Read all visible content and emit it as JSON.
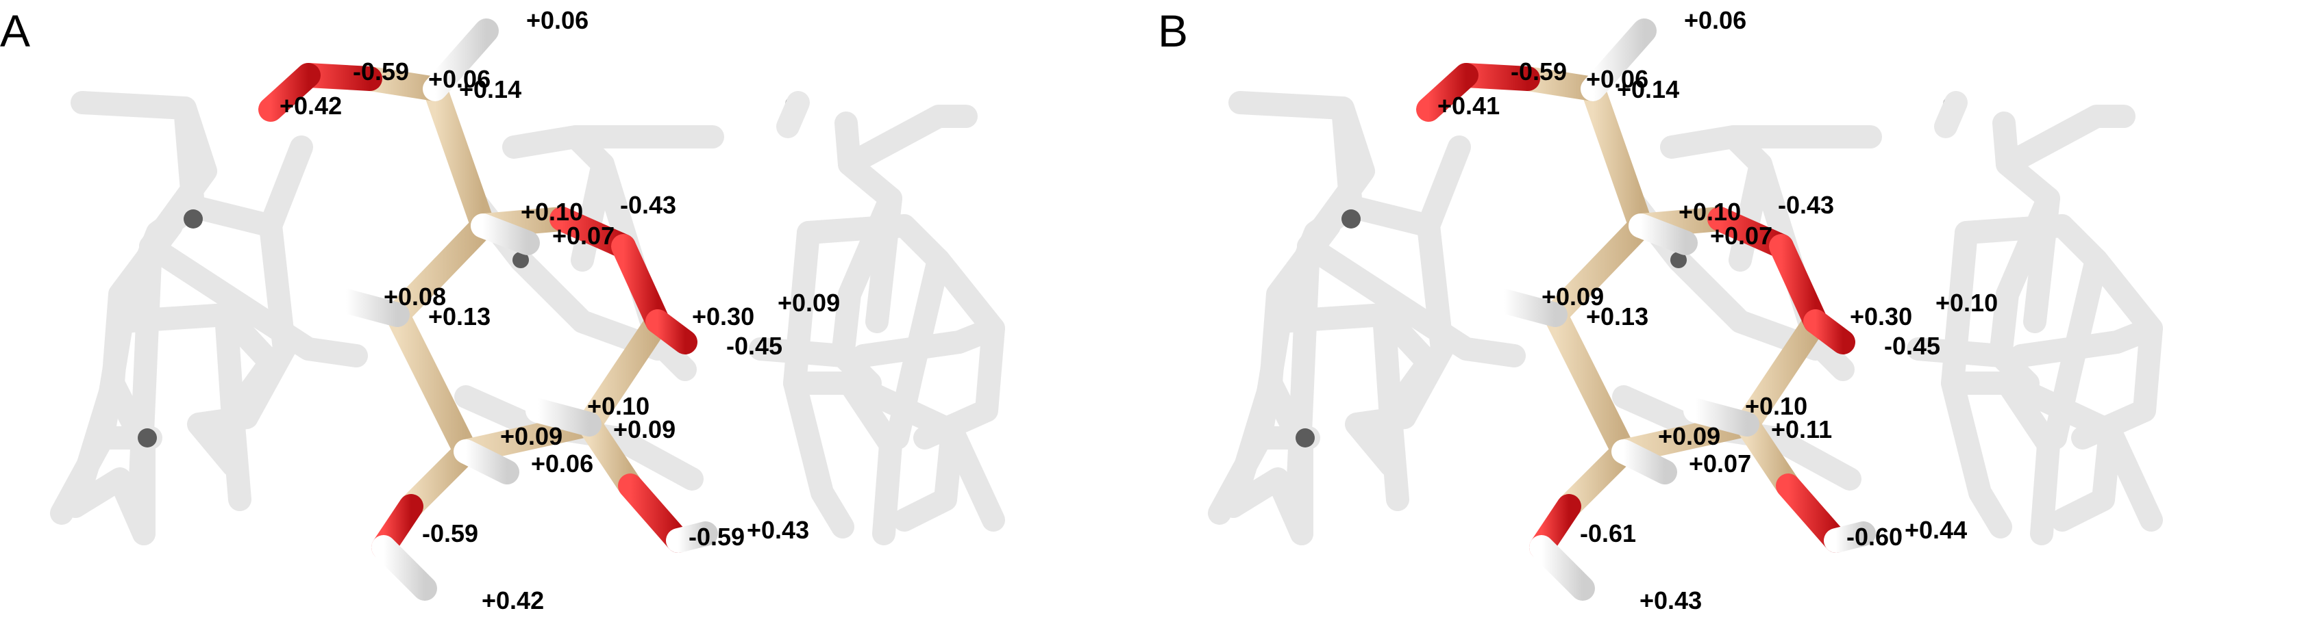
{
  "colors": {
    "background": "#ffffff",
    "carbon": "#d8c09a",
    "oxygen": "#e8272a",
    "hydrogen": "#f2f2f2",
    "context_stick": "#ebebeb"
  },
  "panels": [
    {
      "label": "A",
      "charges": [
        "+0.06",
        "-0.59",
        "+0.06",
        "+0.14",
        "+0.42",
        "+0.10",
        "-0.43",
        "+0.07",
        "+0.08",
        "+0.13",
        "+0.30",
        "+0.09",
        "-0.45",
        "+0.10",
        "+0.09",
        "+0.09",
        "+0.06",
        "-0.59",
        "-0.59",
        "+0.43",
        "+0.42"
      ]
    },
    {
      "label": "B",
      "charges": [
        "+0.06",
        "-0.59",
        "+0.06",
        "+0.14",
        "+0.41",
        "+0.10",
        "-0.43",
        "+0.07",
        "+0.09",
        "+0.13",
        "+0.30",
        "+0.10",
        "-0.45",
        "+0.10",
        "+0.11",
        "+0.09",
        "+0.07",
        "-0.61",
        "-0.60",
        "+0.44",
        "+0.43"
      ]
    }
  ]
}
